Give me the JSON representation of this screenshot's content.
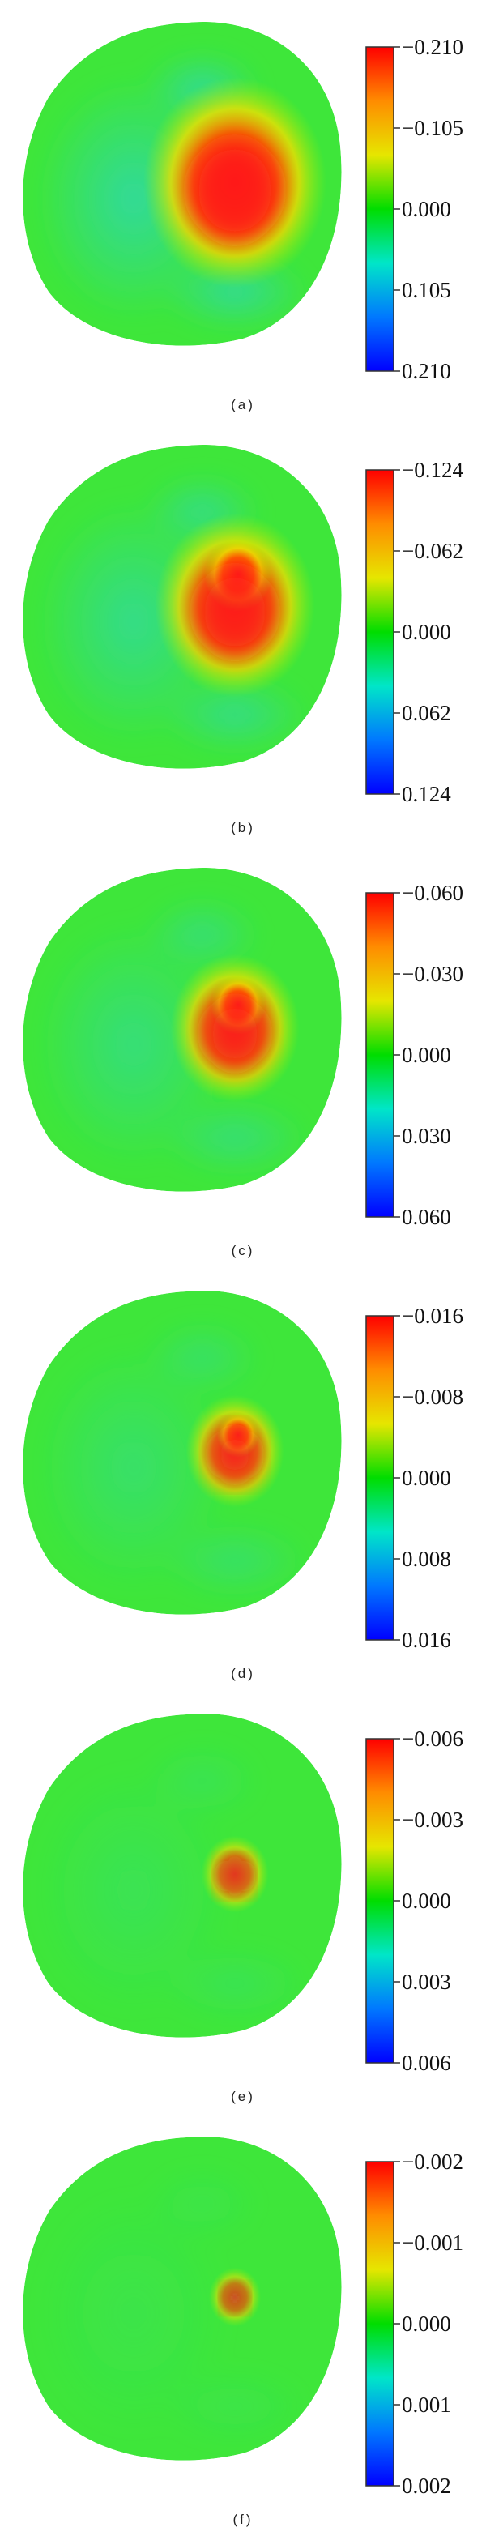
{
  "figure": {
    "panels": [
      {
        "caption": "(a)",
        "colorbar": {
          "ticks": [
            "−0.210",
            "−0.105",
            "0.000",
            "0.105",
            "0.210"
          ]
        },
        "hotspot": {
          "level": 1.0,
          "size": 1.0,
          "shape": "blob"
        }
      },
      {
        "caption": "(b)",
        "colorbar": {
          "ticks": [
            "−0.124",
            "−0.062",
            "0.000",
            "0.062",
            "0.124"
          ]
        },
        "hotspot": {
          "level": 0.95,
          "size": 0.85,
          "shape": "lobed"
        }
      },
      {
        "caption": "(c)",
        "colorbar": {
          "ticks": [
            "−0.060",
            "−0.030",
            "0.000",
            "0.030",
            "0.060"
          ]
        },
        "hotspot": {
          "level": 0.9,
          "size": 0.65,
          "shape": "lobed"
        }
      },
      {
        "caption": "(d)",
        "colorbar": {
          "ticks": [
            "−0.016",
            "−0.008",
            "0.000",
            "0.008",
            "0.016"
          ]
        },
        "hotspot": {
          "level": 0.85,
          "size": 0.45,
          "shape": "lobed"
        }
      },
      {
        "caption": "(e)",
        "colorbar": {
          "ticks": [
            "−0.006",
            "−0.003",
            "0.000",
            "0.003",
            "0.006"
          ]
        },
        "hotspot": {
          "level": 0.75,
          "size": 0.25,
          "shape": "small"
        }
      },
      {
        "caption": "(f)",
        "colorbar": {
          "ticks": [
            "−0.002",
            "−0.001",
            "0.000",
            "0.001",
            "0.002"
          ]
        },
        "hotspot": {
          "level": 0.65,
          "size": 0.15,
          "shape": "small"
        }
      }
    ],
    "colors": {
      "background_field": "#3ee63a",
      "cool_region": "#2fd8a8",
      "hot_core": "#ff1a1a",
      "colorbar_stops": [
        "#ff0000",
        "#ff8c00",
        "#e6e600",
        "#00dd00",
        "#00e6c8",
        "#0078ff",
        "#0000ff"
      ]
    }
  }
}
